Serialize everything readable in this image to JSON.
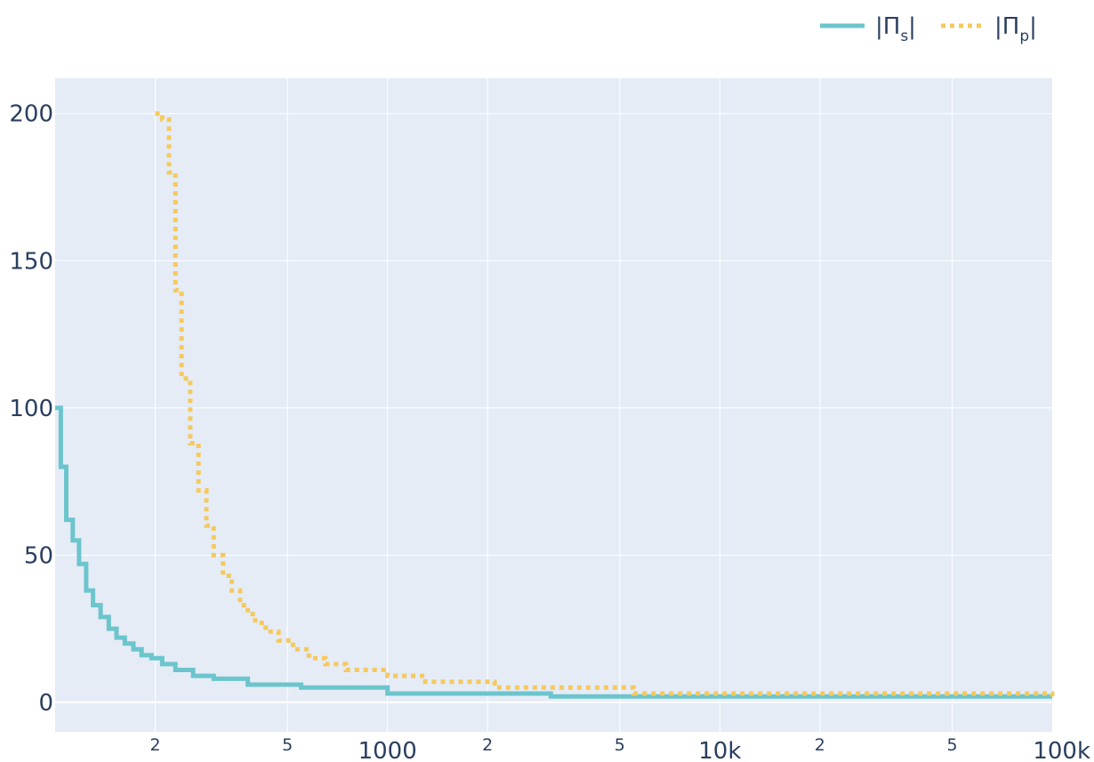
{
  "chart_data": {
    "type": "line",
    "title": "",
    "xlabel": "",
    "ylabel": "",
    "x_scale": "log",
    "xlim": [
      100,
      100000
    ],
    "ylim": [
      -10,
      212
    ],
    "grid": true,
    "legend_position": "top-right",
    "x_major_ticks": [
      {
        "value": 1000,
        "label": "1000"
      },
      {
        "value": 10000,
        "label": "10k"
      },
      {
        "value": 100000,
        "label": "100k"
      }
    ],
    "x_minor_ticks": [
      {
        "value": 200,
        "label": "2"
      },
      {
        "value": 500,
        "label": "5"
      },
      {
        "value": 2000,
        "label": "2"
      },
      {
        "value": 5000,
        "label": "5"
      },
      {
        "value": 20000,
        "label": "2"
      },
      {
        "value": 50000,
        "label": "5"
      }
    ],
    "y_ticks": [
      {
        "value": 0,
        "label": "0"
      },
      {
        "value": 50,
        "label": "50"
      },
      {
        "value": 100,
        "label": "100"
      },
      {
        "value": 150,
        "label": "150"
      },
      {
        "value": 200,
        "label": "200"
      }
    ],
    "series": [
      {
        "name": "|Π_s|",
        "name_base": "|Π",
        "name_sub": "s",
        "name_end": "|",
        "color": "#6cc5cc",
        "dash": "solid",
        "line_shape": "hv",
        "x": [
          100,
          104,
          108,
          113,
          118,
          124,
          130,
          137,
          145,
          153,
          162,
          172,
          182,
          195,
          210,
          230,
          260,
          300,
          380,
          550,
          1000,
          3100,
          100000
        ],
        "y": [
          100,
          80,
          62,
          55,
          47,
          38,
          33,
          29,
          25,
          22,
          20,
          18,
          16,
          15,
          13,
          11,
          9,
          8,
          6,
          5,
          3,
          2,
          2
        ]
      },
      {
        "name": "|Π_p|",
        "name_base": "|Π",
        "name_sub": "p",
        "name_end": "|",
        "color": "#f5c95e",
        "dash": "dot",
        "line_shape": "hv",
        "x": [
          200,
          210,
          220,
          230,
          240,
          255,
          270,
          285,
          300,
          320,
          340,
          360,
          380,
          400,
          430,
          470,
          520,
          580,
          650,
          750,
          1000,
          1300,
          2100,
          5500,
          100000
        ],
        "y": [
          200,
          198,
          180,
          140,
          110,
          88,
          72,
          60,
          50,
          43,
          38,
          33,
          30,
          27,
          24,
          21,
          18,
          15,
          13,
          11,
          9,
          7,
          5,
          3,
          2
        ]
      }
    ]
  }
}
